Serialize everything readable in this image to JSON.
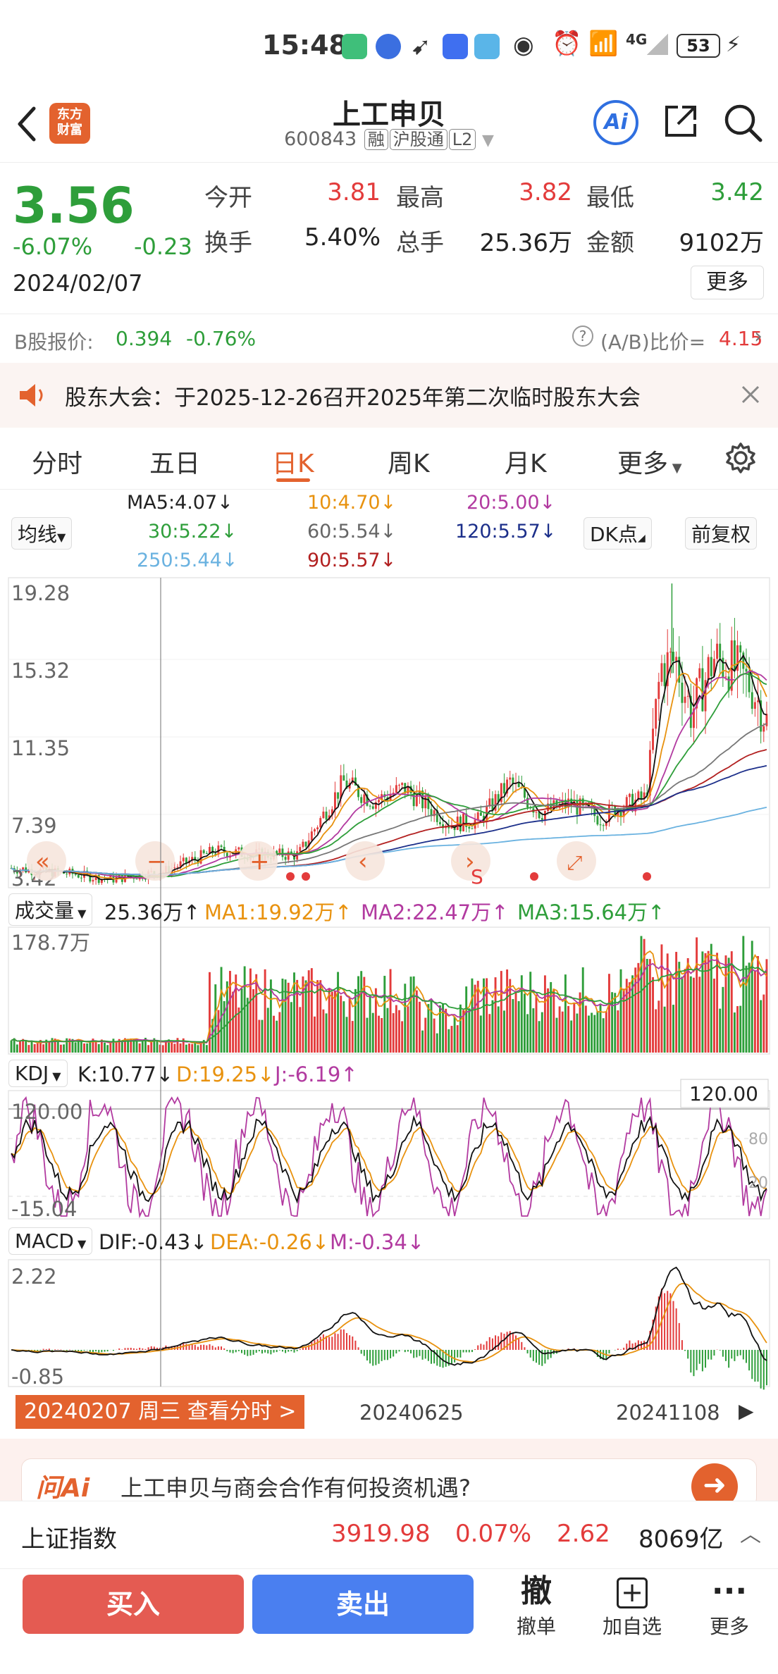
{
  "status_bar": {
    "time": "15:48",
    "battery": "53",
    "network": "4G"
  },
  "header": {
    "back_icon": "chevron-left-icon",
    "logo_text": "东方\n财富",
    "title": "上工申贝",
    "code": "600843",
    "tags": [
      "融",
      "沪股通",
      "L2"
    ],
    "ai_label": "Ai"
  },
  "quote": {
    "price": "3.56",
    "change_pct": "-6.07%",
    "change": "-0.23",
    "date": "2024/02/07",
    "open_label": "今开",
    "open": "3.81",
    "high_label": "最高",
    "high": "3.82",
    "low_label": "最低",
    "low": "3.42",
    "turnover_label": "换手",
    "turnover": "5.40%",
    "volume_label": "总手",
    "volume": "25.36万",
    "amount_label": "金额",
    "amount": "9102万",
    "more": "更多"
  },
  "b_share": {
    "label": "B股报价:",
    "price": "0.394",
    "pct": "-0.76%",
    "ratio_label": "(A/B)比价=",
    "ratio": "4.15"
  },
  "notice": {
    "text": "股东大会：于2025-12-26召开2025年第二次临时股东大会"
  },
  "tabs": [
    "分时",
    "五日",
    "日K",
    "周K",
    "月K",
    "更多"
  ],
  "active_tab": "日K",
  "ma": {
    "selector": "均线",
    "ma5": "MA5:4.07↓",
    "ma10": "10:4.70↓",
    "ma20": "20:5.00↓",
    "ma30": "30:5.22↓",
    "ma60": "60:5.54↓",
    "ma120": "120:5.57↓",
    "ma250": "250:5.44↓",
    "ma90": "90:5.57↓",
    "dk": "DK点",
    "fq": "前复权"
  },
  "kline": {
    "y_labels": [
      "19.28",
      "15.32",
      "11.35",
      "7.39",
      "3.42"
    ],
    "markers": [
      "S"
    ]
  },
  "volume": {
    "selector": "成交量",
    "value": "25.36万↑",
    "ma1": "MA1:19.92万↑",
    "ma2": "MA2:22.47万↑",
    "ma3": "MA3:15.64万↑",
    "y_label": "178.7万"
  },
  "kdj": {
    "selector": "KDJ",
    "k": "K:10.77↓",
    "d": "D:19.25↓",
    "j": "J:-6.19↑",
    "y_top": "120.00",
    "y_bottom": "-15.04",
    "cursor_value": "120.00",
    "r80": "80",
    "r20": "20"
  },
  "macd": {
    "selector": "MACD",
    "dif": "DIF:-0.43↓",
    "dea": "DEA:-0.26↓",
    "m": "M:-0.34↓",
    "y_top": "2.22",
    "y_bottom": "-0.85"
  },
  "x_axis": {
    "labels": [
      "20240625",
      "20241108"
    ],
    "cursor_tip": "20240207 周三 查看分时 >"
  },
  "ai_banner": {
    "logo": "问Ai",
    "text": "上工申贝与商会合作有何投资机遇?"
  },
  "index_bar": {
    "name": "上证指数",
    "value": "3919.98",
    "pct": "0.07%",
    "change": "2.62",
    "amount": "8069亿"
  },
  "bottom": {
    "buy": "买入",
    "sell": "卖出",
    "cancel": "撤单",
    "cancel_icon": "撤",
    "add": "加自选",
    "more": "更多"
  },
  "colors": {
    "up": "#e33b3b",
    "down": "#2e9e3a",
    "accent": "#e3622e",
    "buy": "#e45b52",
    "sell": "#4a7ff0"
  }
}
